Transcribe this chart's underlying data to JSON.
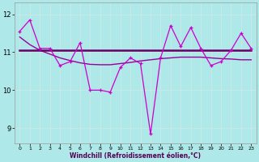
{
  "xlabel": "Windchill (Refroidissement éolien,°C)",
  "background_color": "#aee8e8",
  "grid_color": "#c8e8e8",
  "x": [
    0,
    1,
    2,
    3,
    4,
    5,
    6,
    7,
    8,
    9,
    10,
    11,
    12,
    13,
    14,
    15,
    16,
    17,
    18,
    19,
    20,
    21,
    22,
    23
  ],
  "y_zigzag": [
    11.55,
    11.85,
    11.1,
    11.1,
    10.65,
    10.75,
    11.25,
    10.0,
    10.0,
    9.95,
    10.6,
    10.85,
    10.7,
    8.85,
    10.85,
    11.7,
    11.15,
    11.65,
    11.1,
    10.65,
    10.75,
    11.05,
    11.5,
    11.1
  ],
  "y_flat": [
    11.05,
    11.05,
    11.05,
    11.05,
    11.05,
    11.05,
    11.05,
    11.05,
    11.05,
    11.05,
    11.05,
    11.05,
    11.05,
    11.05,
    11.05,
    11.05,
    11.05,
    11.05,
    11.05,
    11.05,
    11.05,
    11.05,
    11.05,
    11.05
  ],
  "y_trend": [
    11.4,
    11.2,
    11.05,
    10.95,
    10.85,
    10.78,
    10.72,
    10.68,
    10.67,
    10.67,
    10.7,
    10.73,
    10.77,
    10.8,
    10.83,
    10.85,
    10.87,
    10.87,
    10.87,
    10.85,
    10.83,
    10.82,
    10.8,
    10.8
  ],
  "color_zigzag": "#cc00cc",
  "color_flat": "#660066",
  "color_trend": "#990099",
  "ylim": [
    8.6,
    12.3
  ],
  "yticks": [
    9,
    10,
    11,
    12
  ],
  "xticks": [
    0,
    1,
    2,
    3,
    4,
    5,
    6,
    7,
    8,
    9,
    10,
    11,
    12,
    13,
    14,
    15,
    16,
    17,
    18,
    19,
    20,
    21,
    22,
    23
  ]
}
